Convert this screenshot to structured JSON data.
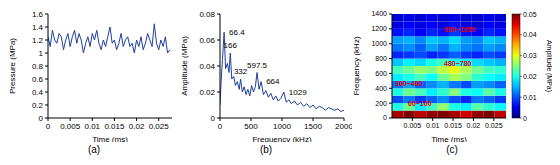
{
  "chart_data": [
    {
      "type": "line",
      "title": "(a)",
      "x_label": "Time (ms)",
      "y_label": "Pressure (MPa)",
      "color": "#1f3f9f",
      "grid": false,
      "xlim": [
        0,
        0.028
      ],
      "xticks": [
        0,
        0.005,
        0.01,
        0.015,
        0.02,
        0.025
      ],
      "ylim": [
        0,
        1.6
      ],
      "yticks": [
        0,
        0.2,
        0.4,
        0.6,
        0.8,
        1,
        1.2,
        1.4,
        1.6
      ],
      "x": [
        0,
        0.0005,
        0.001,
        0.0015,
        0.002,
        0.0025,
        0.003,
        0.0035,
        0.004,
        0.0045,
        0.005,
        0.0055,
        0.006,
        0.0065,
        0.007,
        0.0075,
        0.008,
        0.0085,
        0.009,
        0.0095,
        0.01,
        0.0105,
        0.011,
        0.0115,
        0.012,
        0.0125,
        0.013,
        0.0135,
        0.014,
        0.0145,
        0.015,
        0.0155,
        0.016,
        0.0165,
        0.017,
        0.0175,
        0.018,
        0.0185,
        0.019,
        0.0195,
        0.02,
        0.0205,
        0.021,
        0.0215,
        0.022,
        0.0225,
        0.023,
        0.0235,
        0.024,
        0.0245,
        0.025,
        0.0255,
        0.026,
        0.0265,
        0.027,
        0.0275
      ],
      "values": [
        1.25,
        1.1,
        1.35,
        1.2,
        1.15,
        1.3,
        1.25,
        1.05,
        1.2,
        1.3,
        1.1,
        1.25,
        1.35,
        1.15,
        1.3,
        1.2,
        1,
        1.15,
        1.25,
        1.1,
        1.3,
        1.2,
        1.35,
        1.15,
        1.05,
        1.2,
        1.1,
        1.25,
        1.4,
        1.15,
        1.2,
        1.05,
        1.15,
        1.3,
        1.1,
        1.2,
        1.25,
        1.1,
        1.15,
        1,
        1.2,
        1.1,
        1.25,
        1.05,
        1.15,
        1.3,
        1.2,
        1.1,
        1.45,
        1.15,
        1.05,
        1.2,
        1.1,
        1.25,
        1,
        1.05
      ]
    },
    {
      "type": "line",
      "title": "(b)",
      "x_label": "Frequency (kHz)",
      "y_label": "Amplitude (MPa)",
      "color": "#1f3f9f",
      "grid": false,
      "xlim": [
        0,
        2000
      ],
      "xticks": [
        0,
        500,
        1000,
        1500,
        2000
      ],
      "ylim": [
        0,
        0.08
      ],
      "yticks": [
        0,
        0.02,
        0.04,
        0.06,
        0.08
      ],
      "x": [
        0,
        20,
        40,
        66.4,
        90,
        120,
        145,
        166,
        190,
        220,
        250,
        280,
        310,
        332,
        360,
        390,
        420,
        450,
        480,
        510,
        540,
        570,
        597.5,
        630,
        664,
        700,
        740,
        780,
        820,
        860,
        900,
        940,
        980,
        1029,
        1070,
        1110,
        1150,
        1200,
        1250,
        1300,
        1350,
        1400,
        1450,
        1500,
        1550,
        1600,
        1650,
        1700,
        1750,
        1800,
        1850,
        1900,
        1950,
        2000
      ],
      "values": [
        0.01,
        0.03,
        0.045,
        0.066,
        0.038,
        0.042,
        0.035,
        0.05,
        0.03,
        0.032,
        0.025,
        0.028,
        0.022,
        0.03,
        0.02,
        0.024,
        0.018,
        0.022,
        0.017,
        0.025,
        0.02,
        0.024,
        0.035,
        0.022,
        0.028,
        0.018,
        0.021,
        0.016,
        0.019,
        0.014,
        0.017,
        0.013,
        0.015,
        0.02,
        0.012,
        0.014,
        0.011,
        0.013,
        0.01,
        0.012,
        0.009,
        0.011,
        0.008,
        0.01,
        0.007,
        0.009,
        0.008,
        0.006,
        0.008,
        0.007,
        0.006,
        0.007,
        0.005,
        0.006
      ],
      "annotations": [
        {
          "x": 66.4,
          "y": 0.066,
          "label": "66.4"
        },
        {
          "x": 166,
          "y": 0.05,
          "label": "166"
        },
        {
          "x": 332,
          "y": 0.03,
          "label": "332"
        },
        {
          "x": 597.5,
          "y": 0.035,
          "label": "597.5"
        },
        {
          "x": 664,
          "y": 0.028,
          "label": "664"
        },
        {
          "x": 1029,
          "y": 0.02,
          "label": "1029"
        }
      ]
    },
    {
      "type": "heatmap",
      "title": "(c)",
      "x_label": "Time (ms)",
      "y_label": "Frequency (kHz)",
      "xlim": [
        0,
        0.028
      ],
      "xticks": [
        0.005,
        0.01,
        0.015,
        0.02,
        0.025
      ],
      "ylim": [
        0,
        1400
      ],
      "yticks": [
        0,
        200,
        400,
        600,
        800,
        1000,
        1200,
        1400
      ],
      "x_edges": [
        0,
        0.0028,
        0.0056,
        0.0084,
        0.0112,
        0.014,
        0.0168,
        0.0196,
        0.0224,
        0.0252,
        0.028
      ],
      "y_edges": [
        0,
        100,
        200,
        300,
        400,
        500,
        600,
        700,
        800,
        900,
        1000,
        1100,
        1200,
        1300,
        1400
      ],
      "cells": [
        [
          0.048,
          0.05,
          0.047,
          0.049,
          0.05,
          0.048,
          0.046,
          0.049,
          0.05,
          0.047
        ],
        [
          0.02,
          0.024,
          0.018,
          0.022,
          0.026,
          0.02,
          0.018,
          0.023,
          0.021,
          0.019
        ],
        [
          0.01,
          0.012,
          0.009,
          0.011,
          0.013,
          0.01,
          0.008,
          0.012,
          0.011,
          0.009
        ],
        [
          0.02,
          0.024,
          0.022,
          0.018,
          0.021,
          0.025,
          0.02,
          0.019,
          0.023,
          0.02
        ],
        [
          0.012,
          0.014,
          0.011,
          0.013,
          0.015,
          0.012,
          0.01,
          0.014,
          0.013,
          0.011
        ],
        [
          0.018,
          0.02,
          0.022,
          0.019,
          0.024,
          0.027,
          0.025,
          0.021,
          0.019,
          0.018
        ],
        [
          0.022,
          0.024,
          0.026,
          0.025,
          0.028,
          0.03,
          0.027,
          0.024,
          0.022,
          0.021
        ],
        [
          0.016,
          0.018,
          0.017,
          0.02,
          0.022,
          0.019,
          0.018,
          0.017,
          0.016,
          0.015
        ],
        [
          0.008,
          0.009,
          0.01,
          0.008,
          0.009,
          0.011,
          0.009,
          0.008,
          0.01,
          0.009
        ],
        [
          0.012,
          0.013,
          0.011,
          0.014,
          0.012,
          0.015,
          0.013,
          0.012,
          0.014,
          0.013
        ],
        [
          0.014,
          0.015,
          0.013,
          0.016,
          0.015,
          0.017,
          0.014,
          0.013,
          0.016,
          0.015
        ],
        [
          0.007,
          0.008,
          0.006,
          0.008,
          0.007,
          0.009,
          0.007,
          0.006,
          0.008,
          0.007
        ],
        [
          0.005,
          0.006,
          0.005,
          0.006,
          0.005,
          0.007,
          0.005,
          0.004,
          0.006,
          0.005
        ],
        [
          0.004,
          0.005,
          0.004,
          0.005,
          0.004,
          0.005,
          0.004,
          0.004,
          0.005,
          0.004
        ]
      ],
      "colorbar": {
        "label": "Amplitude (MPa)",
        "lim": [
          0,
          0.05
        ],
        "ticks": [
          0,
          0.01,
          0.02,
          0.03,
          0.04,
          0.05
        ]
      },
      "annotations": [
        "60~100",
        "300~400",
        "480~780",
        "950~1050"
      ]
    }
  ]
}
